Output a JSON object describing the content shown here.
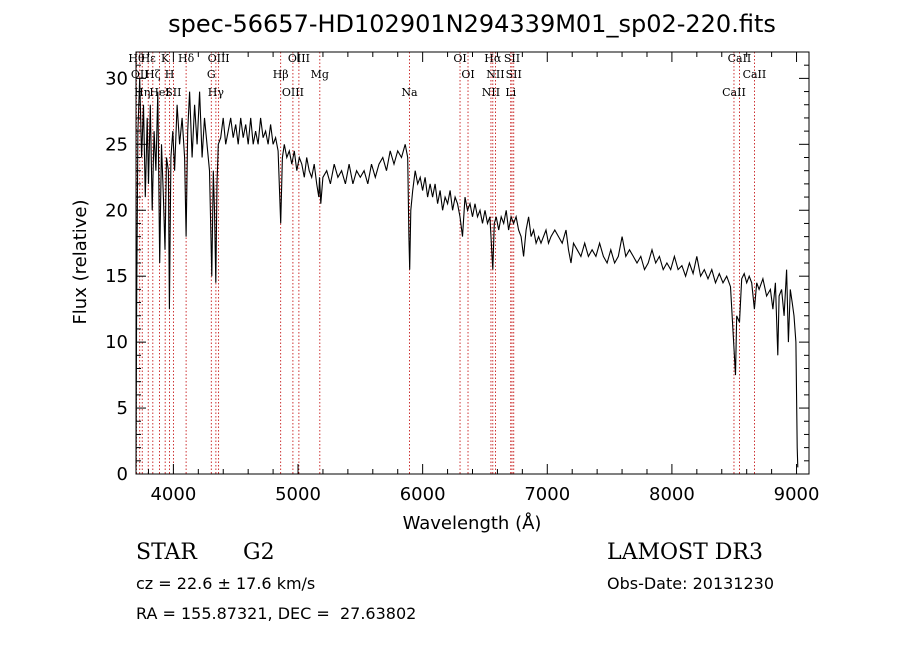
{
  "chart_data": {
    "type": "line",
    "title": "spec-56657-HD102901N294339M01_sp02-220.fits",
    "xlabel": "Wavelength (Å)",
    "ylabel": "Flux (relative)",
    "xlim": [
      3700,
      9100
    ],
    "ylim": [
      0,
      32
    ],
    "xticks": [
      4000,
      5000,
      6000,
      7000,
      8000,
      9000
    ],
    "yticks": [
      0,
      5,
      10,
      15,
      20,
      25,
      30
    ],
    "grid": false,
    "series": [
      {
        "points": [
          [
            3700,
            0.5
          ],
          [
            3705,
            12.5
          ],
          [
            3715,
            26
          ],
          [
            3730,
            30
          ],
          [
            3745,
            24
          ],
          [
            3760,
            28
          ],
          [
            3775,
            21
          ],
          [
            3790,
            27
          ],
          [
            3800,
            22
          ],
          [
            3815,
            28
          ],
          [
            3830,
            20
          ],
          [
            3845,
            26
          ],
          [
            3860,
            23
          ],
          [
            3875,
            29
          ],
          [
            3890,
            16
          ],
          [
            3905,
            25
          ],
          [
            3920,
            21
          ],
          [
            3933,
            17
          ],
          [
            3945,
            24
          ],
          [
            3960,
            23
          ],
          [
            3968,
            12.5
          ],
          [
            3980,
            24
          ],
          [
            3995,
            26
          ],
          [
            4010,
            23
          ],
          [
            4030,
            28
          ],
          [
            4050,
            25
          ],
          [
            4070,
            27
          ],
          [
            4090,
            24
          ],
          [
            4102,
            18
          ],
          [
            4115,
            26
          ],
          [
            4130,
            29
          ],
          [
            4150,
            24
          ],
          [
            4170,
            28
          ],
          [
            4190,
            25
          ],
          [
            4210,
            29
          ],
          [
            4230,
            24
          ],
          [
            4250,
            27
          ],
          [
            4270,
            25
          ],
          [
            4290,
            23
          ],
          [
            4308,
            15
          ],
          [
            4320,
            23
          ],
          [
            4330,
            20
          ],
          [
            4340,
            14.5
          ],
          [
            4350,
            22
          ],
          [
            4360,
            25
          ],
          [
            4380,
            25.5
          ],
          [
            4400,
            27
          ],
          [
            4420,
            25
          ],
          [
            4440,
            26
          ],
          [
            4460,
            27
          ],
          [
            4480,
            25.5
          ],
          [
            4500,
            26.5
          ],
          [
            4520,
            25
          ],
          [
            4540,
            27
          ],
          [
            4560,
            25.5
          ],
          [
            4580,
            26.5
          ],
          [
            4600,
            25
          ],
          [
            4620,
            27
          ],
          [
            4640,
            25
          ],
          [
            4660,
            26
          ],
          [
            4680,
            25
          ],
          [
            4700,
            27
          ],
          [
            4720,
            25.5
          ],
          [
            4740,
            26
          ],
          [
            4760,
            25
          ],
          [
            4780,
            26.5
          ],
          [
            4800,
            25
          ],
          [
            4820,
            25.5
          ],
          [
            4840,
            24.5
          ],
          [
            4861,
            19
          ],
          [
            4875,
            24
          ],
          [
            4890,
            25
          ],
          [
            4910,
            24
          ],
          [
            4930,
            24.5
          ],
          [
            4950,
            23.5
          ],
          [
            4970,
            24.5
          ],
          [
            4990,
            23
          ],
          [
            5010,
            24
          ],
          [
            5030,
            23.5
          ],
          [
            5050,
            22.5
          ],
          [
            5070,
            24
          ],
          [
            5090,
            23
          ],
          [
            5110,
            22.5
          ],
          [
            5130,
            23.5
          ],
          [
            5150,
            22
          ],
          [
            5167,
            21
          ],
          [
            5172,
            22.5
          ],
          [
            5183,
            20.5
          ],
          [
            5200,
            22.5
          ],
          [
            5230,
            23
          ],
          [
            5260,
            22
          ],
          [
            5290,
            23.5
          ],
          [
            5320,
            22.5
          ],
          [
            5350,
            23
          ],
          [
            5380,
            22
          ],
          [
            5410,
            23.5
          ],
          [
            5440,
            22
          ],
          [
            5470,
            23
          ],
          [
            5500,
            22.5
          ],
          [
            5530,
            23
          ],
          [
            5560,
            22
          ],
          [
            5590,
            23.5
          ],
          [
            5620,
            22.5
          ],
          [
            5650,
            23.5
          ],
          [
            5680,
            24
          ],
          [
            5710,
            23
          ],
          [
            5740,
            24.5
          ],
          [
            5770,
            23.5
          ],
          [
            5800,
            24.5
          ],
          [
            5830,
            24
          ],
          [
            5860,
            25
          ],
          [
            5880,
            24
          ],
          [
            5890,
            18
          ],
          [
            5896,
            15.5
          ],
          [
            5905,
            20
          ],
          [
            5920,
            21.5
          ],
          [
            5940,
            23
          ],
          [
            5960,
            22
          ],
          [
            5980,
            22.5
          ],
          [
            6000,
            21.5
          ],
          [
            6020,
            22.5
          ],
          [
            6040,
            21
          ],
          [
            6060,
            22
          ],
          [
            6080,
            21
          ],
          [
            6100,
            22
          ],
          [
            6120,
            20.5
          ],
          [
            6140,
            21.5
          ],
          [
            6160,
            20
          ],
          [
            6180,
            21
          ],
          [
            6200,
            20.5
          ],
          [
            6220,
            21.5
          ],
          [
            6240,
            20
          ],
          [
            6260,
            21
          ],
          [
            6280,
            20.5
          ],
          [
            6300,
            19.5
          ],
          [
            6320,
            18
          ],
          [
            6340,
            21
          ],
          [
            6360,
            20
          ],
          [
            6380,
            20.5
          ],
          [
            6400,
            19.5
          ],
          [
            6420,
            20.5
          ],
          [
            6440,
            19.5
          ],
          [
            6460,
            20
          ],
          [
            6480,
            19
          ],
          [
            6500,
            20
          ],
          [
            6520,
            19
          ],
          [
            6540,
            19.5
          ],
          [
            6563,
            15.5
          ],
          [
            6575,
            19
          ],
          [
            6590,
            19.5
          ],
          [
            6610,
            18.5
          ],
          [
            6630,
            19.5
          ],
          [
            6650,
            19
          ],
          [
            6670,
            20
          ],
          [
            6690,
            18.5
          ],
          [
            6710,
            19.5
          ],
          [
            6730,
            19
          ],
          [
            6750,
            19.5
          ],
          [
            6770,
            18.5
          ],
          [
            6790,
            18
          ],
          [
            6810,
            16.5
          ],
          [
            6830,
            18.5
          ],
          [
            6850,
            19.5
          ],
          [
            6870,
            18
          ],
          [
            6890,
            18.5
          ],
          [
            6910,
            17.5
          ],
          [
            6930,
            18
          ],
          [
            6950,
            17.5
          ],
          [
            6970,
            18
          ],
          [
            6990,
            18.5
          ],
          [
            7010,
            17.5
          ],
          [
            7030,
            18
          ],
          [
            7060,
            18.5
          ],
          [
            7090,
            18
          ],
          [
            7120,
            17.5
          ],
          [
            7150,
            18.5
          ],
          [
            7170,
            17
          ],
          [
            7190,
            16
          ],
          [
            7210,
            17.5
          ],
          [
            7240,
            17
          ],
          [
            7270,
            16.5
          ],
          [
            7300,
            17.5
          ],
          [
            7330,
            16.5
          ],
          [
            7360,
            17
          ],
          [
            7390,
            16.5
          ],
          [
            7420,
            17.5
          ],
          [
            7450,
            16.5
          ],
          [
            7480,
            16
          ],
          [
            7510,
            17
          ],
          [
            7540,
            16
          ],
          [
            7570,
            16.5
          ],
          [
            7600,
            18
          ],
          [
            7630,
            16.5
          ],
          [
            7660,
            17
          ],
          [
            7690,
            16.5
          ],
          [
            7720,
            16
          ],
          [
            7750,
            16.5
          ],
          [
            7780,
            15.5
          ],
          [
            7810,
            16
          ],
          [
            7840,
            17
          ],
          [
            7870,
            16
          ],
          [
            7900,
            16.5
          ],
          [
            7930,
            15.5
          ],
          [
            7960,
            16
          ],
          [
            7990,
            15.5
          ],
          [
            8020,
            16.5
          ],
          [
            8050,
            15.5
          ],
          [
            8080,
            15.8
          ],
          [
            8110,
            15
          ],
          [
            8140,
            16
          ],
          [
            8170,
            15.2
          ],
          [
            8200,
            16.5
          ],
          [
            8230,
            15
          ],
          [
            8260,
            15.5
          ],
          [
            8290,
            14.8
          ],
          [
            8320,
            15.5
          ],
          [
            8350,
            14.5
          ],
          [
            8380,
            15.2
          ],
          [
            8410,
            14.5
          ],
          [
            8440,
            15
          ],
          [
            8470,
            14.2
          ],
          [
            8498,
            9.5
          ],
          [
            8510,
            7.5
          ],
          [
            8520,
            12
          ],
          [
            8542,
            11.5
          ],
          [
            8560,
            14.8
          ],
          [
            8580,
            15.2
          ],
          [
            8600,
            14.5
          ],
          [
            8620,
            15
          ],
          [
            8640,
            14.5
          ],
          [
            8662,
            12.5
          ],
          [
            8680,
            14.5
          ],
          [
            8700,
            14
          ],
          [
            8730,
            14.8
          ],
          [
            8760,
            13.5
          ],
          [
            8790,
            14
          ],
          [
            8810,
            12.5
          ],
          [
            8830,
            14.5
          ],
          [
            8850,
            9
          ],
          [
            8860,
            13.5
          ],
          [
            8880,
            14
          ],
          [
            8900,
            12
          ],
          [
            8920,
            15.5
          ],
          [
            8935,
            10
          ],
          [
            8950,
            14
          ],
          [
            8965,
            13
          ],
          [
            8980,
            12
          ],
          [
            8995,
            10
          ],
          [
            9005,
            2
          ],
          [
            9010,
            0.5
          ]
        ]
      }
    ],
    "lines": [
      {
        "x": 3704,
        "labels": [
          "Hθ"
        ]
      },
      {
        "x": 3730,
        "labels": [
          "OII"
        ]
      },
      {
        "x": 3750,
        "labels": [
          "Hη"
        ]
      },
      {
        "x": 3798,
        "labels": [
          "Hε"
        ]
      },
      {
        "x": 3835,
        "labels": [
          "Hζ"
        ]
      },
      {
        "x": 3889,
        "labels": [
          "HeI"
        ]
      },
      {
        "x": 3934,
        "labels": [
          "K"
        ]
      },
      {
        "x": 3969,
        "labels": [
          "H"
        ]
      },
      {
        "x": 4000,
        "labels": [
          "SII"
        ]
      },
      {
        "x": 4102,
        "labels": [
          "Hδ"
        ]
      },
      {
        "x": 4304,
        "labels": [
          "G"
        ]
      },
      {
        "x": 4341,
        "labels": [
          "Hγ"
        ]
      },
      {
        "x": 4363,
        "labels": [
          "OIII"
        ]
      },
      {
        "x": 4861,
        "labels": [
          "Hβ"
        ]
      },
      {
        "x": 4959,
        "labels": [
          "OIII"
        ]
      },
      {
        "x": 5007,
        "labels": [
          "OIII"
        ]
      },
      {
        "x": 5175,
        "labels": [
          "Mg"
        ]
      },
      {
        "x": 5894,
        "labels": [
          "Na"
        ]
      },
      {
        "x": 6300,
        "labels": [
          "OI"
        ]
      },
      {
        "x": 6364,
        "labels": [
          "OI"
        ]
      },
      {
        "x": 6548,
        "labels": [
          "NII"
        ]
      },
      {
        "x": 6563,
        "labels": [
          "Hα"
        ]
      },
      {
        "x": 6584,
        "labels": [
          "NII"
        ]
      },
      {
        "x": 6707,
        "labels": [
          "Li"
        ]
      },
      {
        "x": 6717,
        "labels": [
          "SII"
        ]
      },
      {
        "x": 6731,
        "labels": [
          "SII"
        ]
      },
      {
        "x": 8498,
        "labels": [
          "CaII"
        ]
      },
      {
        "x": 8542,
        "labels": [
          "CaII"
        ]
      },
      {
        "x": 8662,
        "labels": [
          "CaII"
        ]
      }
    ]
  },
  "info": {
    "object_class": "STAR",
    "subclass": "G2",
    "survey": "LAMOST DR3",
    "cz": "cz = 22.6 ± 17.6 km/s",
    "obs_date": "Obs-Date: 20131230",
    "coords": "RA = 155.87321, DEC =  27.63802"
  },
  "colors": {
    "spectrum": "#000000",
    "line_markers": "#c00000"
  }
}
